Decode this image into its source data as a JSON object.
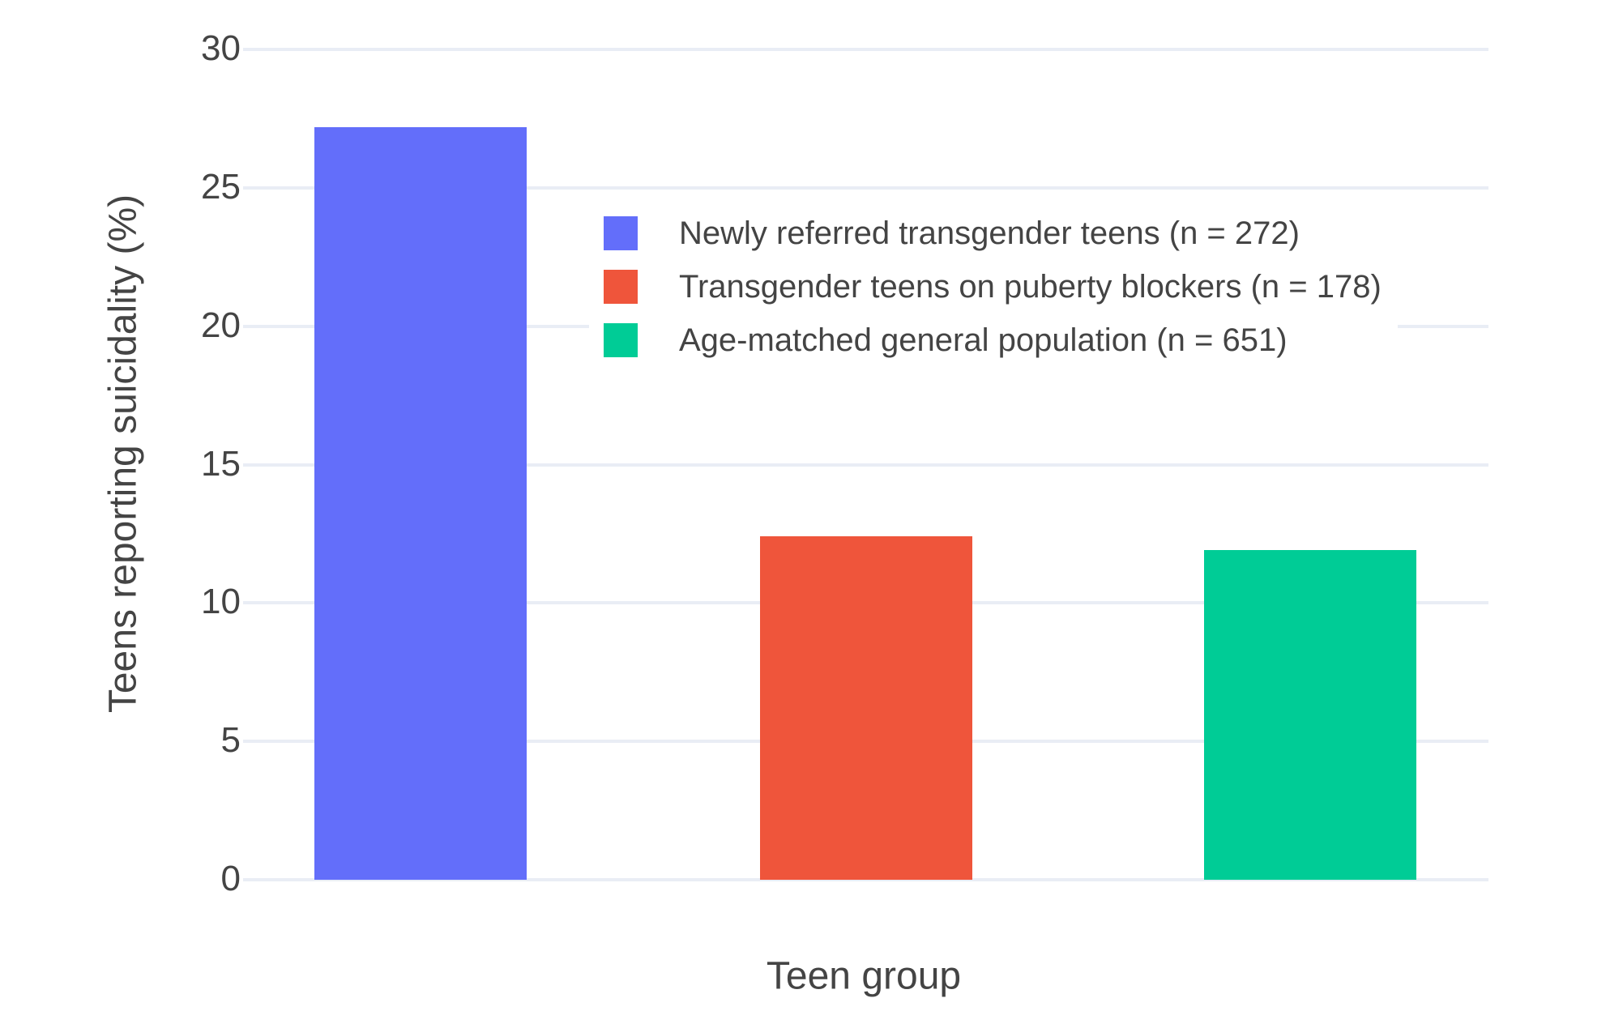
{
  "colors": {
    "background": "#FFFFFF",
    "grid": "#E9EDF5",
    "text": "#444444"
  },
  "chart_data": {
    "type": "bar",
    "title": "",
    "xlabel": "Teen group",
    "ylabel": "Teens reporting suicidality (%)",
    "ylim": [
      0,
      30
    ],
    "yticks": [
      0,
      5,
      10,
      15,
      20,
      25,
      30
    ],
    "grid": true,
    "legend_position": "inside top-center",
    "x_tick_labels": [],
    "series": [
      {
        "name": "Newly referred transgender teens (n = 272)",
        "group": "Newly referred transgender teens",
        "n": 272,
        "value": 27.2,
        "color": "#636EFA"
      },
      {
        "name": "Transgender teens on puberty blockers (n = 178)",
        "group": "Transgender teens on puberty blockers",
        "n": 178,
        "value": 12.4,
        "color": "#EF553B"
      },
      {
        "name": "Age-matched general population (n = 651)",
        "group": "Age-matched general population",
        "n": 651,
        "value": 11.9,
        "color": "#00CC96"
      }
    ]
  }
}
